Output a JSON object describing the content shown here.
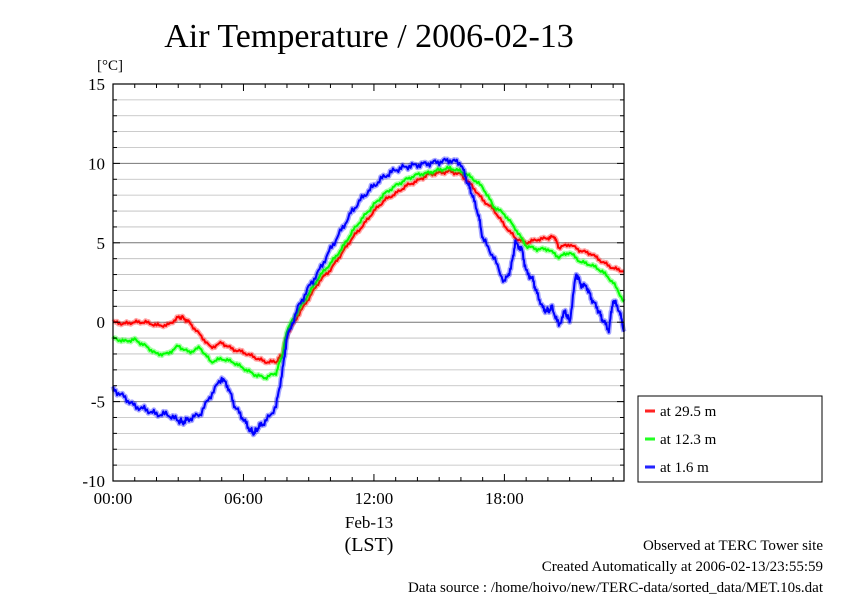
{
  "chart_data": {
    "type": "line",
    "title": "Air Temperature / 2006-02-13",
    "ylabel": "[°C]",
    "xlabel": "(LST)",
    "date_label": "Feb-13",
    "ylim": [
      -10,
      15
    ],
    "xlim_hours": [
      0,
      23.5
    ],
    "y_ticks": [
      {
        "value": -10,
        "label": "-10"
      },
      {
        "value": -5,
        "label": "-5"
      },
      {
        "value": 0,
        "label": "0"
      },
      {
        "value": 5,
        "label": "5"
      },
      {
        "value": 10,
        "label": "10"
      },
      {
        "value": 15,
        "label": "15"
      }
    ],
    "x_ticks": [
      {
        "value": 0,
        "label": "00:00"
      },
      {
        "value": 6,
        "label": "06:00"
      },
      {
        "value": 12,
        "label": "12:00"
      },
      {
        "value": 18,
        "label": "18:00"
      }
    ],
    "grid": true,
    "legend_position": "right",
    "series": [
      {
        "name": "at 29.5 m",
        "color": "#ff0000",
        "x": [
          0,
          0.5,
          1,
          1.5,
          2,
          2.5,
          3,
          3.2,
          3.5,
          4,
          4.5,
          5,
          5.5,
          6,
          6.5,
          7,
          7.5,
          7.8,
          8,
          8.5,
          9,
          9.5,
          10,
          10.5,
          11,
          11.5,
          12,
          12.5,
          13,
          13.5,
          14,
          14.5,
          15,
          15.5,
          16,
          16.5,
          17,
          17.5,
          18,
          18.5,
          19,
          19.5,
          20,
          20.3,
          20.5,
          21,
          21.5,
          22,
          22.5,
          23,
          23.5
        ],
        "y": [
          0,
          -0.1,
          0,
          0,
          -0.2,
          -0.2,
          0.3,
          0.3,
          0,
          -0.8,
          -1.6,
          -1.3,
          -1.7,
          -1.9,
          -2.2,
          -2.5,
          -2.5,
          -2.0,
          -0.8,
          0.4,
          1.5,
          2.6,
          3.3,
          4.3,
          5.3,
          6.1,
          7.0,
          7.7,
          8.1,
          8.6,
          8.9,
          9.3,
          9.4,
          9.5,
          9.3,
          8.6,
          7.7,
          7.1,
          6.1,
          5.3,
          5.0,
          5.2,
          5.3,
          5.4,
          4.7,
          4.9,
          4.5,
          4.3,
          3.8,
          3.4,
          3.2
        ]
      },
      {
        "name": "at 12.3 m",
        "color": "#00ff00",
        "x": [
          0,
          0.5,
          1,
          1.5,
          2,
          2.5,
          3,
          3.5,
          4,
          4.5,
          5,
          5.5,
          6,
          6.5,
          7,
          7.5,
          7.8,
          8,
          8.5,
          9,
          9.5,
          10,
          10.5,
          11,
          11.5,
          12,
          12.5,
          13,
          13.5,
          14,
          14.5,
          15,
          15.5,
          16,
          16.5,
          17,
          17.5,
          18,
          18.5,
          19,
          19.5,
          20,
          20.5,
          21,
          21.5,
          22,
          22.5,
          23,
          23.5
        ],
        "y": [
          -1.0,
          -1.2,
          -1.1,
          -1.5,
          -2.0,
          -2.0,
          -1.5,
          -1.9,
          -1.6,
          -2.5,
          -2.3,
          -2.5,
          -2.9,
          -3.3,
          -3.5,
          -3.2,
          -2.0,
          -0.5,
          0.7,
          1.8,
          2.9,
          3.7,
          4.6,
          5.7,
          6.6,
          7.4,
          8.1,
          8.6,
          9.0,
          9.3,
          9.4,
          9.6,
          9.7,
          9.5,
          9.1,
          8.5,
          7.3,
          6.8,
          5.9,
          4.8,
          4.6,
          4.6,
          4.1,
          4.4,
          3.8,
          3.6,
          3.2,
          2.5,
          1.3
        ]
      },
      {
        "name": "at 1.6 m",
        "color": "#0000ff",
        "x": [
          0,
          0.5,
          1,
          1.5,
          2,
          2.5,
          3,
          3.2,
          3.5,
          4,
          4.5,
          5,
          5.3,
          5.6,
          6,
          6.3,
          6.5,
          6.7,
          7,
          7.5,
          7.8,
          8,
          8.5,
          9,
          9.5,
          10,
          10.5,
          11,
          11.5,
          12,
          12.5,
          13,
          13.5,
          14,
          14.5,
          15,
          15.5,
          16,
          16.3,
          16.5,
          16.8,
          17,
          17.5,
          18,
          18.3,
          18.5,
          18.8,
          19,
          19.3,
          19.5,
          19.8,
          20,
          20.2,
          20.5,
          20.8,
          21,
          21.3,
          21.5,
          21.8,
          22,
          22.3,
          22.5,
          22.8,
          23,
          23.3,
          23.5
        ],
        "y": [
          -4.2,
          -4.7,
          -5.3,
          -5.5,
          -5.8,
          -5.8,
          -6.2,
          -6.3,
          -6.1,
          -5.8,
          -4.6,
          -3.5,
          -4.1,
          -5.3,
          -6.1,
          -6.8,
          -7.0,
          -6.6,
          -6.3,
          -5.3,
          -3.0,
          -1.0,
          0.9,
          2.2,
          3.3,
          4.6,
          5.8,
          7.0,
          7.9,
          8.6,
          9.2,
          9.6,
          9.8,
          9.9,
          10.0,
          10.1,
          10.2,
          10.0,
          8.8,
          8.1,
          6.8,
          5.3,
          4.1,
          2.5,
          3.4,
          5.0,
          4.6,
          3.2,
          2.7,
          1.8,
          0.8,
          0.7,
          0.9,
          -0.2,
          0.7,
          0.0,
          3.1,
          2.4,
          2.2,
          1.5,
          0.8,
          0.2,
          -0.5,
          1.4,
          0.7,
          -0.6
        ]
      }
    ]
  },
  "notes": {
    "line1": "Observed at TERC Tower site",
    "line2": "Created Automatically at 2006-02-13/23:55:59",
    "line3": "Data source : /home/hoivo/new/TERC-data/sorted_data/MET.10s.dat"
  }
}
